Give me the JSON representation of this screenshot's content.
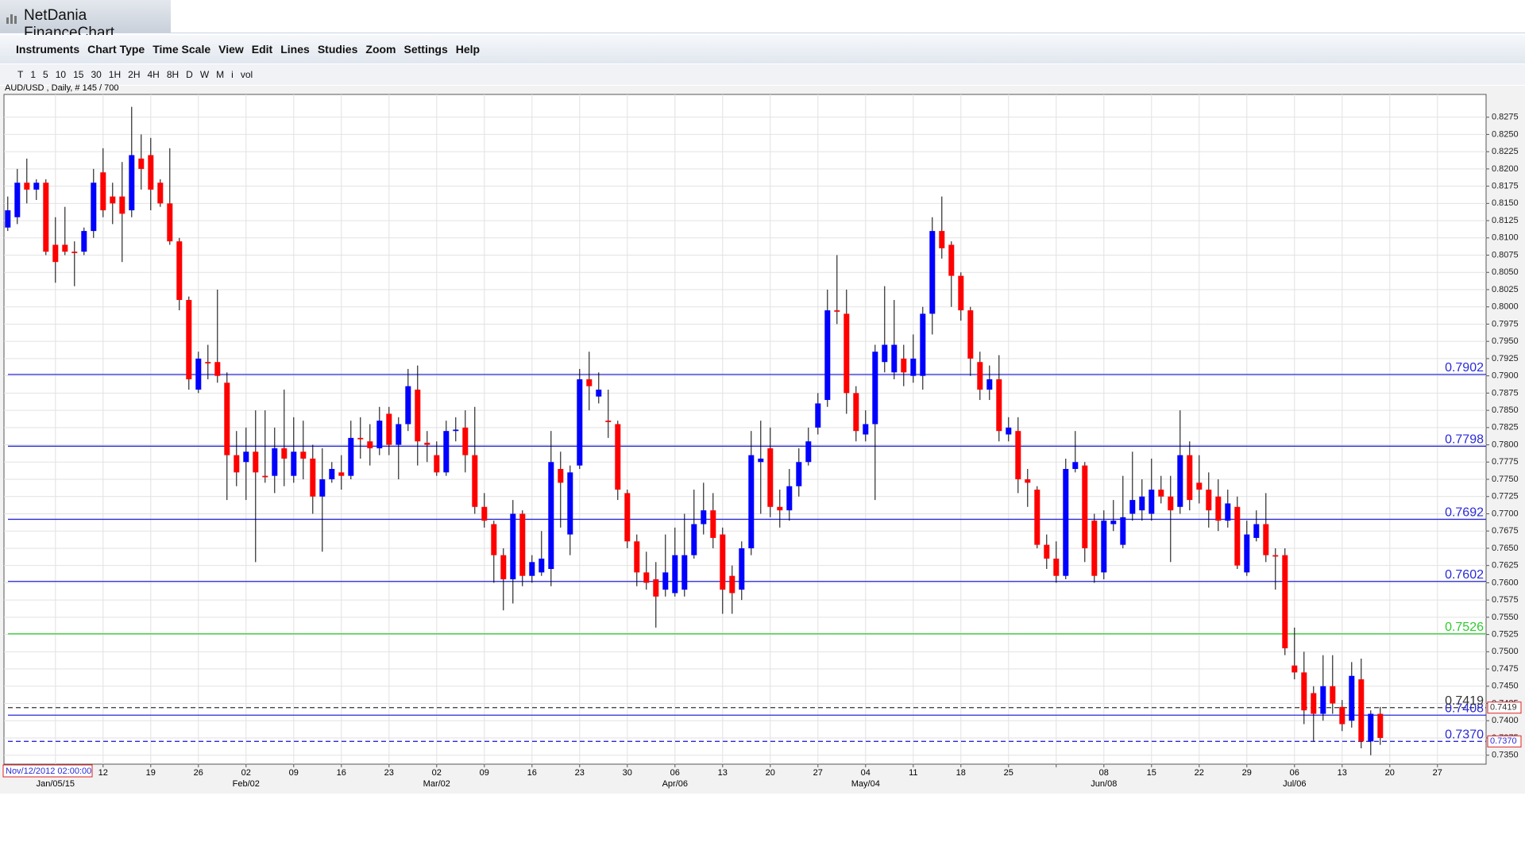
{
  "window_title": "NetDania FinanceChart",
  "menu": [
    "Instruments",
    "Chart Type",
    "Time Scale",
    "View",
    "Edit",
    "Lines",
    "Studies",
    "Zoom",
    "Settings",
    "Help"
  ],
  "toolbar": [
    "T",
    "1",
    "5",
    "10",
    "15",
    "30",
    "1H",
    "2H",
    "4H",
    "8H",
    "D",
    "W",
    "M",
    "i",
    "vol"
  ],
  "chart_data": {
    "type": "candlestick",
    "title": "AUD/USD , Daily, # 145 / 700",
    "cursor_label": "Nov/12/2012 02:00:00",
    "up_color": "#0000ff",
    "down_color": "#ff0000",
    "ylim": [
      0.7337,
      0.8308
    ],
    "yticks": [
      {
        "value": 0.735,
        "label": "0.7350"
      },
      0.7375,
      {
        "value": 0.74,
        "label": "0.7400"
      },
      0.7425,
      {
        "value": 0.745,
        "label": "0.7450"
      },
      0.7475,
      {
        "value": 0.75,
        "label": "0.7500"
      },
      0.7525,
      {
        "value": 0.755,
        "label": "0.7550"
      },
      0.7575,
      {
        "value": 0.76,
        "label": "0.7600"
      },
      0.7625,
      {
        "value": 0.765,
        "label": "0.7650"
      },
      0.7675,
      {
        "value": 0.77,
        "label": "0.7700"
      },
      0.7725,
      {
        "value": 0.775,
        "label": "0.7750"
      },
      0.7775,
      {
        "value": 0.78,
        "label": "0.7800"
      },
      0.7825,
      {
        "value": 0.785,
        "label": "0.7850"
      },
      0.7875,
      {
        "value": 0.79,
        "label": "0.7900"
      },
      0.7925,
      {
        "value": 0.795,
        "label": "0.7950"
      },
      0.7975,
      {
        "value": 0.8,
        "label": "0.8000"
      },
      0.8025,
      {
        "value": 0.805,
        "label": "0.8050"
      },
      0.8075,
      {
        "value": 0.81,
        "label": "0.8100"
      },
      0.8125,
      {
        "value": 0.815,
        "label": "0.8150"
      },
      0.8175,
      {
        "value": 0.82,
        "label": "0.8200"
      },
      0.8225,
      {
        "value": 0.825,
        "label": "0.8250"
      },
      0.8275
    ],
    "week_labels": [
      null,
      "12",
      "19",
      "26",
      "02",
      "09",
      "16",
      "23",
      "02",
      "09",
      "16",
      "23",
      "30",
      "06",
      "13",
      "20",
      "27",
      "04",
      "11",
      "18",
      "25",
      null,
      "08",
      "15",
      "22",
      "29",
      "06",
      "13",
      "20",
      "27"
    ],
    "month_labels": [
      "Jan/05/15",
      null,
      null,
      null,
      "Feb/02",
      null,
      null,
      null,
      "Mar/02",
      null,
      null,
      null,
      null,
      "Apr/06",
      null,
      null,
      null,
      "May/04",
      null,
      null,
      null,
      null,
      "Jun/08",
      null,
      null,
      null,
      "Jul/06",
      null,
      null,
      null
    ],
    "levels": [
      {
        "value": 0.7902,
        "label": "0.7902",
        "color": "#2a2ad8",
        "style": "solid"
      },
      {
        "value": 0.7798,
        "label": "0.7798",
        "color": "#2a2ad8",
        "style": "solid"
      },
      {
        "value": 0.7692,
        "label": "0.7692",
        "color": "#2a2ad8",
        "style": "solid"
      },
      {
        "value": 0.7602,
        "label": "0.7602",
        "color": "#2a2ad8",
        "style": "solid"
      },
      {
        "value": 0.7526,
        "label": "0.7526",
        "color": "#2ecc2e",
        "style": "solid"
      },
      {
        "value": 0.7408,
        "label": "0.7408",
        "color": "#2a2ad8",
        "style": "solid"
      },
      {
        "value": 0.7419,
        "label": "0.7419",
        "color": "#333333",
        "style": "dashed"
      },
      {
        "value": 0.737,
        "label": "0.7370",
        "color": "#2a2ad8",
        "style": "dashed"
      }
    ],
    "open": [
      0.8115,
      0.813,
      0.818,
      0.817,
      0.818,
      0.809,
      0.809,
      0.808,
      0.808,
      0.811,
      0.8195,
      0.816,
      0.816,
      0.814,
      0.8215,
      0.822,
      0.818,
      0.815,
      0.8095,
      0.801,
      0.788,
      0.792,
      0.792,
      0.789,
      0.7785,
      0.7775,
      0.779,
      0.7755,
      0.7755,
      0.7795,
      0.7755,
      0.779,
      0.778,
      0.7725,
      0.775,
      0.776,
      0.7755,
      0.781,
      0.7805,
      0.7795,
      0.7845,
      0.78,
      0.783,
      0.788,
      0.7803,
      0.7785,
      0.776,
      0.782,
      0.7825,
      0.7785,
      0.771,
      0.7685,
      0.764,
      0.7605,
      0.77,
      0.761,
      0.7615,
      0.762,
      0.7765,
      0.767,
      0.777,
      0.7895,
      0.787,
      0.7835,
      0.783,
      0.773,
      0.766,
      0.7615,
      0.7605,
      0.759,
      0.7585,
      0.759,
      0.764,
      0.7685,
      0.7705,
      0.767,
      0.761,
      0.759,
      0.765,
      0.7775,
      0.7795,
      0.771,
      0.7705,
      0.774,
      0.7775,
      0.7825,
      0.7865,
      0.7995,
      0.799,
      0.7875,
      0.7815,
      0.783,
      0.792,
      0.7905,
      0.7925,
      0.79,
      0.79,
      0.799,
      0.811,
      0.809,
      0.8045,
      0.7995,
      0.792,
      0.788,
      0.7895,
      0.7815,
      0.782,
      0.775,
      0.7735,
      0.7655,
      0.7635,
      0.761,
      0.7765,
      0.777,
      0.769,
      0.7615,
      0.7685,
      0.7655,
      0.77,
      0.7705,
      0.77,
      0.7735,
      0.7725,
      0.771,
      0.7785,
      0.7745,
      0.7735,
      0.7725,
      0.769,
      0.771,
      0.7615,
      0.7665,
      0.7685,
      0.764,
      0.764,
      0.748,
      0.747,
      0.744,
      0.741,
      0.745,
      0.742,
      0.74,
      0.746,
      0.737,
      0.741
    ],
    "high": [
      0.816,
      0.82,
      0.8215,
      0.8185,
      0.8185,
      0.813,
      0.8145,
      0.8095,
      0.8115,
      0.82,
      0.823,
      0.818,
      0.821,
      0.829,
      0.825,
      0.8245,
      0.8185,
      0.823,
      0.81,
      0.8015,
      0.7935,
      0.7945,
      0.8025,
      0.7905,
      0.782,
      0.7825,
      0.785,
      0.785,
      0.7825,
      0.788,
      0.784,
      0.7835,
      0.78,
      0.7795,
      0.7775,
      0.7785,
      0.7835,
      0.784,
      0.783,
      0.7855,
      0.7855,
      0.784,
      0.791,
      0.7915,
      0.782,
      0.7805,
      0.7835,
      0.784,
      0.785,
      0.7855,
      0.773,
      0.769,
      0.765,
      0.772,
      0.7705,
      0.764,
      0.7675,
      0.782,
      0.779,
      0.777,
      0.791,
      0.7935,
      0.7905,
      0.788,
      0.7835,
      0.7735,
      0.767,
      0.7645,
      0.763,
      0.767,
      0.768,
      0.77,
      0.7735,
      0.7745,
      0.773,
      0.768,
      0.7625,
      0.766,
      0.782,
      0.7835,
      0.7825,
      0.7735,
      0.7765,
      0.7795,
      0.7825,
      0.7875,
      0.8025,
      0.8075,
      0.8025,
      0.7885,
      0.785,
      0.7945,
      0.803,
      0.801,
      0.7945,
      0.796,
      0.8,
      0.813,
      0.816,
      0.8095,
      0.805,
      0.8,
      0.7935,
      0.7915,
      0.793,
      0.784,
      0.784,
      0.7765,
      0.774,
      0.767,
      0.766,
      0.778,
      0.782,
      0.7775,
      0.77,
      0.7705,
      0.772,
      0.7755,
      0.779,
      0.775,
      0.778,
      0.7755,
      0.7755,
      0.785,
      0.7805,
      0.7785,
      0.776,
      0.775,
      0.7735,
      0.7725,
      0.769,
      0.7705,
      0.773,
      0.765,
      0.765,
      0.7535,
      0.75,
      0.745,
      0.7495,
      0.7495,
      0.743,
      0.7485,
      0.749,
      0.7415,
      0.742
    ],
    "low": [
      0.811,
      0.812,
      0.815,
      0.8155,
      0.8075,
      0.8035,
      0.8075,
      0.803,
      0.8075,
      0.81,
      0.813,
      0.812,
      0.8065,
      0.813,
      0.817,
      0.814,
      0.8145,
      0.809,
      0.7995,
      0.788,
      0.7875,
      0.7895,
      0.789,
      0.772,
      0.774,
      0.772,
      0.763,
      0.7745,
      0.773,
      0.774,
      0.7745,
      0.775,
      0.77,
      0.7645,
      0.7745,
      0.7735,
      0.775,
      0.778,
      0.777,
      0.7785,
      0.7785,
      0.775,
      0.782,
      0.777,
      0.7775,
      0.7755,
      0.7755,
      0.7805,
      0.776,
      0.77,
      0.768,
      0.76,
      0.756,
      0.757,
      0.7595,
      0.76,
      0.761,
      0.7595,
      0.768,
      0.764,
      0.7765,
      0.785,
      0.786,
      0.781,
      0.772,
      0.765,
      0.7595,
      0.759,
      0.7535,
      0.758,
      0.758,
      0.758,
      0.7635,
      0.767,
      0.765,
      0.7555,
      0.7555,
      0.7575,
      0.764,
      0.77,
      0.7695,
      0.768,
      0.769,
      0.7725,
      0.777,
      0.7815,
      0.7855,
      0.7975,
      0.7845,
      0.7805,
      0.7805,
      0.772,
      0.7905,
      0.7895,
      0.7885,
      0.789,
      0.788,
      0.796,
      0.807,
      0.8,
      0.798,
      0.79,
      0.7865,
      0.7865,
      0.7805,
      0.7805,
      0.773,
      0.771,
      0.765,
      0.762,
      0.76,
      0.7605,
      0.776,
      0.763,
      0.76,
      0.7605,
      0.7675,
      0.765,
      0.769,
      0.769,
      0.769,
      0.7715,
      0.763,
      0.77,
      0.7705,
      0.7715,
      0.768,
      0.7675,
      0.768,
      0.762,
      0.761,
      0.766,
      0.763,
      0.759,
      0.7495,
      0.746,
      0.7395,
      0.737,
      0.74,
      0.741,
      0.7385,
      0.739,
      0.736,
      0.735,
      0.7365
    ],
    "close": [
      0.814,
      0.818,
      0.817,
      0.818,
      0.808,
      0.8065,
      0.808,
      0.8078,
      0.811,
      0.818,
      0.814,
      0.815,
      0.8135,
      0.822,
      0.82,
      0.817,
      0.815,
      0.8095,
      0.801,
      0.7895,
      0.7925,
      0.7918,
      0.79,
      0.7785,
      0.776,
      0.779,
      0.776,
      0.7753,
      0.7795,
      0.778,
      0.779,
      0.778,
      0.7725,
      0.775,
      0.7765,
      0.7755,
      0.781,
      0.7808,
      0.7795,
      0.7835,
      0.78,
      0.783,
      0.7885,
      0.7805,
      0.78,
      0.776,
      0.782,
      0.7822,
      0.7785,
      0.771,
      0.769,
      0.764,
      0.7605,
      0.77,
      0.761,
      0.763,
      0.7635,
      0.7775,
      0.7745,
      0.776,
      0.7895,
      0.7885,
      0.788,
      0.7833,
      0.7735,
      0.766,
      0.7615,
      0.76,
      0.758,
      0.7615,
      0.764,
      0.764,
      0.7685,
      0.7705,
      0.7665,
      0.759,
      0.7585,
      0.765,
      0.7785,
      0.778,
      0.771,
      0.7705,
      0.774,
      0.7775,
      0.7805,
      0.786,
      0.7995,
      0.7993,
      0.7875,
      0.782,
      0.783,
      0.7935,
      0.7945,
      0.7945,
      0.7905,
      0.7925,
      0.799,
      0.811,
      0.8085,
      0.8045,
      0.7995,
      0.7925,
      0.788,
      0.7895,
      0.782,
      0.7825,
      0.775,
      0.7745,
      0.7655,
      0.7635,
      0.761,
      0.7765,
      0.7775,
      0.765,
      0.761,
      0.769,
      0.769,
      0.7695,
      0.772,
      0.7725,
      0.7735,
      0.7725,
      0.7705,
      0.7785,
      0.772,
      0.7735,
      0.7705,
      0.769,
      0.7715,
      0.7625,
      0.767,
      0.7685,
      0.764,
      0.7638,
      0.7505,
      0.747,
      0.7415,
      0.741,
      0.745,
      0.7425,
      0.7395,
      0.7465,
      0.737,
      0.741,
      0.7375
    ]
  }
}
